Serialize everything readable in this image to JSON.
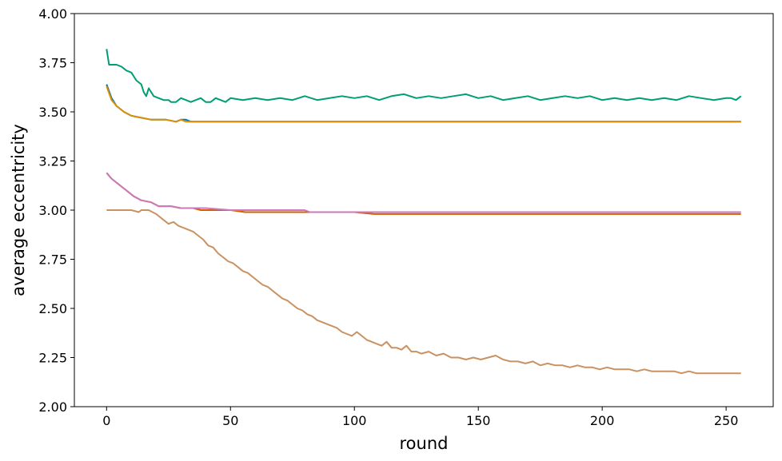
{
  "chart_data": {
    "type": "line",
    "title": "",
    "xlabel": "round",
    "ylabel": "average eccentricity",
    "xlim": [
      -13,
      269
    ],
    "ylim": [
      2.0,
      4.0
    ],
    "xticks": [
      0,
      50,
      100,
      150,
      200,
      250
    ],
    "yticks": [
      2.0,
      2.25,
      2.5,
      2.75,
      3.0,
      3.25,
      3.5,
      3.75,
      4.0
    ],
    "ytick_labels": [
      "2.00",
      "2.25",
      "2.50",
      "2.75",
      "3.00",
      "3.25",
      "3.50",
      "3.75",
      "4.00"
    ],
    "xtick_labels": [
      "0",
      "50",
      "100",
      "150",
      "200",
      "250"
    ],
    "grid": false,
    "legend": "none",
    "series": [
      {
        "color": "#029e73",
        "points": [
          [
            0,
            3.82
          ],
          [
            1,
            3.74
          ],
          [
            4,
            3.74
          ],
          [
            6,
            3.73
          ],
          [
            8,
            3.71
          ],
          [
            10,
            3.7
          ],
          [
            12,
            3.66
          ],
          [
            14,
            3.64
          ],
          [
            15,
            3.6
          ],
          [
            16,
            3.58
          ],
          [
            17,
            3.62
          ],
          [
            19,
            3.58
          ],
          [
            21,
            3.57
          ],
          [
            23,
            3.56
          ],
          [
            25,
            3.56
          ],
          [
            26,
            3.55
          ],
          [
            28,
            3.55
          ],
          [
            30,
            3.57
          ],
          [
            32,
            3.56
          ],
          [
            34,
            3.55
          ],
          [
            36,
            3.56
          ],
          [
            38,
            3.57
          ],
          [
            40,
            3.55
          ],
          [
            42,
            3.55
          ],
          [
            44,
            3.57
          ],
          [
            46,
            3.56
          ],
          [
            48,
            3.55
          ],
          [
            50,
            3.57
          ],
          [
            55,
            3.56
          ],
          [
            60,
            3.57
          ],
          [
            65,
            3.56
          ],
          [
            70,
            3.57
          ],
          [
            75,
            3.56
          ],
          [
            80,
            3.58
          ],
          [
            85,
            3.56
          ],
          [
            90,
            3.57
          ],
          [
            95,
            3.58
          ],
          [
            100,
            3.57
          ],
          [
            105,
            3.58
          ],
          [
            110,
            3.56
          ],
          [
            115,
            3.58
          ],
          [
            120,
            3.59
          ],
          [
            125,
            3.57
          ],
          [
            130,
            3.58
          ],
          [
            135,
            3.57
          ],
          [
            140,
            3.58
          ],
          [
            145,
            3.59
          ],
          [
            150,
            3.57
          ],
          [
            155,
            3.58
          ],
          [
            160,
            3.56
          ],
          [
            165,
            3.57
          ],
          [
            170,
            3.58
          ],
          [
            175,
            3.56
          ],
          [
            180,
            3.57
          ],
          [
            185,
            3.58
          ],
          [
            190,
            3.57
          ],
          [
            195,
            3.58
          ],
          [
            200,
            3.56
          ],
          [
            205,
            3.57
          ],
          [
            210,
            3.56
          ],
          [
            215,
            3.57
          ],
          [
            220,
            3.56
          ],
          [
            225,
            3.57
          ],
          [
            230,
            3.56
          ],
          [
            235,
            3.58
          ],
          [
            240,
            3.57
          ],
          [
            245,
            3.56
          ],
          [
            250,
            3.57
          ],
          [
            252,
            3.57
          ],
          [
            254,
            3.56
          ],
          [
            256,
            3.58
          ]
        ]
      },
      {
        "color": "#0173b2",
        "points": [
          [
            0,
            3.64
          ],
          [
            2,
            3.57
          ],
          [
            4,
            3.53
          ],
          [
            7,
            3.5
          ],
          [
            10,
            3.48
          ],
          [
            14,
            3.47
          ],
          [
            18,
            3.46
          ],
          [
            24,
            3.46
          ],
          [
            28,
            3.45
          ],
          [
            30,
            3.46
          ],
          [
            32,
            3.46
          ],
          [
            34,
            3.45
          ],
          [
            60,
            3.45
          ],
          [
            100,
            3.45
          ],
          [
            104,
            3.45
          ],
          [
            150,
            3.45
          ],
          [
            182,
            3.45
          ],
          [
            194,
            3.45
          ],
          [
            256,
            3.45
          ]
        ]
      },
      {
        "color": "#de8f05",
        "points": [
          [
            0,
            3.63
          ],
          [
            2,
            3.56
          ],
          [
            4,
            3.53
          ],
          [
            7,
            3.5
          ],
          [
            10,
            3.48
          ],
          [
            14,
            3.47
          ],
          [
            18,
            3.46
          ],
          [
            24,
            3.46
          ],
          [
            28,
            3.45
          ],
          [
            30,
            3.46
          ],
          [
            32,
            3.45
          ],
          [
            60,
            3.45
          ],
          [
            100,
            3.45
          ],
          [
            150,
            3.45
          ],
          [
            200,
            3.45
          ],
          [
            256,
            3.45
          ]
        ]
      },
      {
        "color": "#d55e00",
        "points": [
          [
            0,
            3.19
          ],
          [
            2,
            3.16
          ],
          [
            5,
            3.13
          ],
          [
            8,
            3.1
          ],
          [
            11,
            3.07
          ],
          [
            14,
            3.05
          ],
          [
            18,
            3.04
          ],
          [
            21,
            3.02
          ],
          [
            26,
            3.02
          ],
          [
            30,
            3.01
          ],
          [
            35,
            3.01
          ],
          [
            38,
            3.0
          ],
          [
            50,
            3.0
          ],
          [
            56,
            2.99
          ],
          [
            80,
            2.99
          ],
          [
            100,
            2.99
          ],
          [
            108,
            2.98
          ],
          [
            112,
            2.98
          ],
          [
            150,
            2.98
          ],
          [
            200,
            2.98
          ],
          [
            256,
            2.98
          ]
        ]
      },
      {
        "color": "#cc78bc",
        "points": [
          [
            0,
            3.19
          ],
          [
            2,
            3.16
          ],
          [
            5,
            3.13
          ],
          [
            8,
            3.1
          ],
          [
            11,
            3.07
          ],
          [
            14,
            3.05
          ],
          [
            18,
            3.04
          ],
          [
            21,
            3.02
          ],
          [
            26,
            3.02
          ],
          [
            30,
            3.01
          ],
          [
            35,
            3.01
          ],
          [
            40,
            3.01
          ],
          [
            50,
            3.0
          ],
          [
            60,
            3.0
          ],
          [
            70,
            3.0
          ],
          [
            80,
            3.0
          ],
          [
            82,
            2.99
          ],
          [
            100,
            2.99
          ],
          [
            150,
            2.99
          ],
          [
            200,
            2.99
          ],
          [
            256,
            2.99
          ]
        ]
      },
      {
        "color": "#ca9161",
        "points": [
          [
            0,
            3.0
          ],
          [
            5,
            3.0
          ],
          [
            10,
            3.0
          ],
          [
            13,
            2.99
          ],
          [
            14,
            3.0
          ],
          [
            17,
            3.0
          ],
          [
            20,
            2.98
          ],
          [
            23,
            2.95
          ],
          [
            25,
            2.93
          ],
          [
            27,
            2.94
          ],
          [
            29,
            2.92
          ],
          [
            31,
            2.91
          ],
          [
            33,
            2.9
          ],
          [
            35,
            2.89
          ],
          [
            37,
            2.87
          ],
          [
            39,
            2.85
          ],
          [
            41,
            2.82
          ],
          [
            43,
            2.81
          ],
          [
            45,
            2.78
          ],
          [
            47,
            2.76
          ],
          [
            49,
            2.74
          ],
          [
            51,
            2.73
          ],
          [
            53,
            2.71
          ],
          [
            55,
            2.69
          ],
          [
            57,
            2.68
          ],
          [
            59,
            2.66
          ],
          [
            61,
            2.64
          ],
          [
            63,
            2.62
          ],
          [
            65,
            2.61
          ],
          [
            67,
            2.59
          ],
          [
            69,
            2.57
          ],
          [
            71,
            2.55
          ],
          [
            73,
            2.54
          ],
          [
            75,
            2.52
          ],
          [
            77,
            2.5
          ],
          [
            79,
            2.49
          ],
          [
            81,
            2.47
          ],
          [
            83,
            2.46
          ],
          [
            85,
            2.44
          ],
          [
            87,
            2.43
          ],
          [
            89,
            2.42
          ],
          [
            91,
            2.41
          ],
          [
            93,
            2.4
          ],
          [
            95,
            2.38
          ],
          [
            97,
            2.37
          ],
          [
            99,
            2.36
          ],
          [
            101,
            2.38
          ],
          [
            103,
            2.36
          ],
          [
            105,
            2.34
          ],
          [
            107,
            2.33
          ],
          [
            109,
            2.32
          ],
          [
            111,
            2.31
          ],
          [
            113,
            2.33
          ],
          [
            115,
            2.3
          ],
          [
            117,
            2.3
          ],
          [
            119,
            2.29
          ],
          [
            121,
            2.31
          ],
          [
            123,
            2.28
          ],
          [
            125,
            2.28
          ],
          [
            127,
            2.27
          ],
          [
            130,
            2.28
          ],
          [
            133,
            2.26
          ],
          [
            136,
            2.27
          ],
          [
            139,
            2.25
          ],
          [
            142,
            2.25
          ],
          [
            145,
            2.24
          ],
          [
            148,
            2.25
          ],
          [
            151,
            2.24
          ],
          [
            154,
            2.25
          ],
          [
            157,
            2.26
          ],
          [
            160,
            2.24
          ],
          [
            163,
            2.23
          ],
          [
            166,
            2.23
          ],
          [
            169,
            2.22
          ],
          [
            172,
            2.23
          ],
          [
            175,
            2.21
          ],
          [
            178,
            2.22
          ],
          [
            181,
            2.21
          ],
          [
            184,
            2.21
          ],
          [
            187,
            2.2
          ],
          [
            190,
            2.21
          ],
          [
            193,
            2.2
          ],
          [
            196,
            2.2
          ],
          [
            199,
            2.19
          ],
          [
            202,
            2.2
          ],
          [
            205,
            2.19
          ],
          [
            208,
            2.19
          ],
          [
            211,
            2.19
          ],
          [
            214,
            2.18
          ],
          [
            217,
            2.19
          ],
          [
            220,
            2.18
          ],
          [
            223,
            2.18
          ],
          [
            226,
            2.18
          ],
          [
            229,
            2.18
          ],
          [
            232,
            2.17
          ],
          [
            235,
            2.18
          ],
          [
            238,
            2.17
          ],
          [
            241,
            2.17
          ],
          [
            244,
            2.17
          ],
          [
            247,
            2.17
          ],
          [
            250,
            2.17
          ],
          [
            253,
            2.17
          ],
          [
            256,
            2.17
          ]
        ]
      }
    ]
  }
}
